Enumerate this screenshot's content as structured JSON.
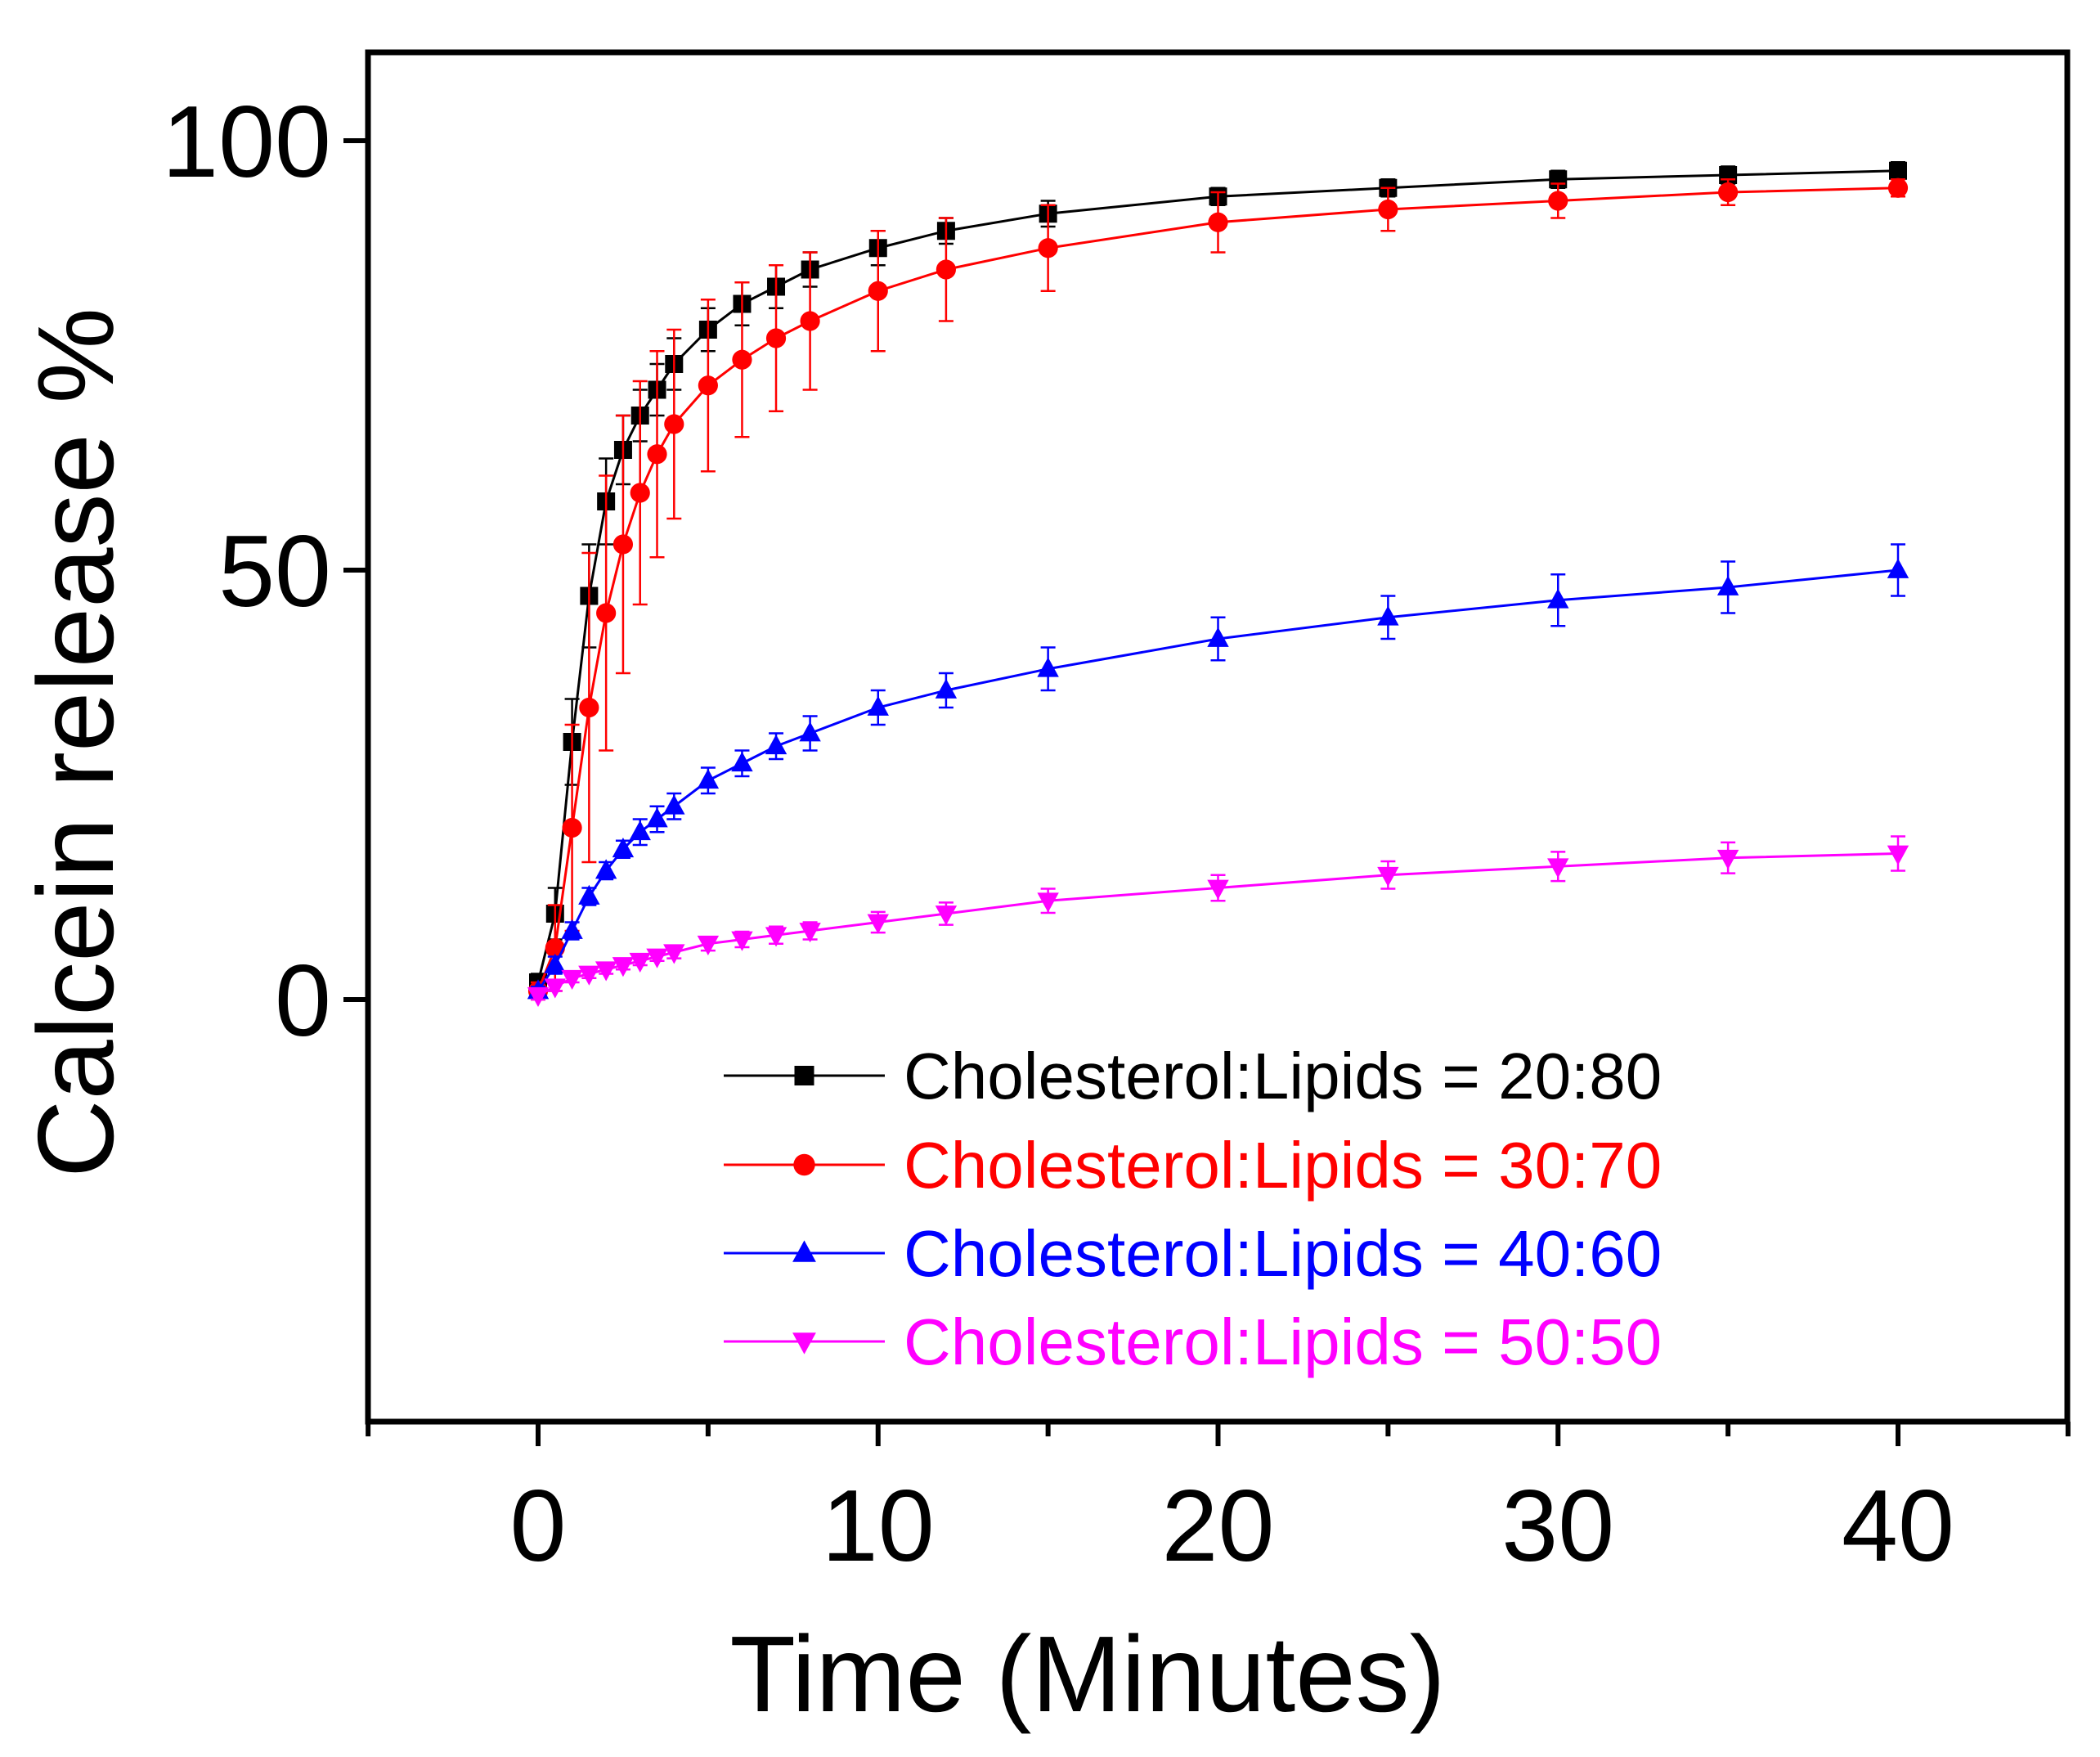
{
  "chart_data": {
    "type": "line",
    "title": "",
    "xlabel": "Time (Minutes)",
    "ylabel": "Calcein release %",
    "xlim": [
      -5,
      45
    ],
    "ylim": [
      -50,
      110
    ],
    "x_ticks": [
      0,
      10,
      20,
      30,
      40
    ],
    "x_tick_labels": [
      "0",
      "10",
      "20",
      "30",
      "40"
    ],
    "y_ticks": [
      0,
      50,
      100
    ],
    "y_tick_labels": [
      "0",
      "50",
      "100"
    ],
    "x_minor_ticks": [
      -5,
      5,
      15,
      25,
      35,
      45
    ],
    "grid": false,
    "legend_position": "bottom-right",
    "series": [
      {
        "name": "Cholesterol:Lipids = 20:80",
        "color": "#000000",
        "marker": "square",
        "x": [
          0,
          0.5,
          1,
          1.5,
          2,
          2.5,
          3,
          3.5,
          4,
          5,
          6,
          7,
          8,
          10,
          12,
          15,
          20,
          25,
          30,
          35,
          40
        ],
        "y": [
          2,
          10,
          30,
          47,
          58,
          64,
          68,
          71,
          74,
          78,
          81,
          83,
          85,
          87.5,
          89.5,
          91.5,
          93.5,
          94.5,
          95.5,
          96,
          96.5
        ],
        "err": [
          1,
          3,
          5,
          6,
          5,
          4,
          3,
          3,
          3,
          2.5,
          2.5,
          2.5,
          2,
          2,
          1.5,
          1.5,
          1,
          1,
          1,
          1,
          1
        ]
      },
      {
        "name": "Cholesterol:Lipids = 30:70",
        "color": "#ff0000",
        "marker": "circle",
        "x": [
          0,
          0.5,
          1,
          1.5,
          2,
          2.5,
          3,
          3.5,
          4,
          5,
          6,
          7,
          8,
          10,
          12,
          15,
          20,
          25,
          30,
          35,
          40
        ],
        "y": [
          1,
          6,
          20,
          34,
          45,
          53,
          59,
          63.5,
          67,
          71.5,
          74.5,
          77,
          79,
          82.5,
          85,
          87.5,
          90.5,
          92,
          93,
          94,
          94.5
        ],
        "err": [
          1,
          5,
          12,
          18,
          16,
          15,
          13,
          12,
          11,
          10,
          9,
          8.5,
          8,
          7,
          6,
          5,
          3.5,
          2.5,
          2,
          1.5,
          1
        ]
      },
      {
        "name": "Cholesterol:Lipids = 40:60",
        "color": "#0000ff",
        "marker": "triangle-up",
        "x": [
          0,
          0.5,
          1,
          1.5,
          2,
          2.5,
          3,
          3.5,
          4,
          5,
          6,
          7,
          8,
          10,
          12,
          15,
          20,
          25,
          30,
          35,
          40
        ],
        "y": [
          1,
          4,
          8,
          12,
          15,
          17.5,
          19.5,
          21,
          22.5,
          25.5,
          27.5,
          29.5,
          31,
          34,
          36,
          38.5,
          42,
          44.5,
          46.5,
          48,
          50
        ],
        "err": [
          0.5,
          1,
          1,
          1,
          1,
          1,
          1.5,
          1.5,
          1.5,
          1.5,
          1.5,
          1.5,
          2,
          2,
          2,
          2.5,
          2.5,
          2.5,
          3,
          3,
          3
        ]
      },
      {
        "name": "Cholesterol:Lipids = 50:50",
        "color": "#ff00ff",
        "marker": "triangle-down",
        "x": [
          0,
          0.5,
          1,
          1.5,
          2,
          2.5,
          3,
          3.5,
          4,
          5,
          6,
          7,
          8,
          10,
          12,
          15,
          20,
          25,
          30,
          35,
          40
        ],
        "y": [
          0.5,
          1.5,
          2.5,
          3,
          3.5,
          4,
          4.5,
          5,
          5.5,
          6.5,
          7,
          7.5,
          8,
          9,
          10,
          11.5,
          13,
          14.5,
          15.5,
          16.5,
          17
        ],
        "err": [
          0.5,
          0.5,
          0.5,
          0.5,
          0.5,
          0.5,
          0.5,
          0.5,
          0.7,
          0.8,
          0.9,
          1,
          1,
          1.2,
          1.3,
          1.4,
          1.5,
          1.6,
          1.7,
          1.8,
          2
        ]
      }
    ]
  }
}
